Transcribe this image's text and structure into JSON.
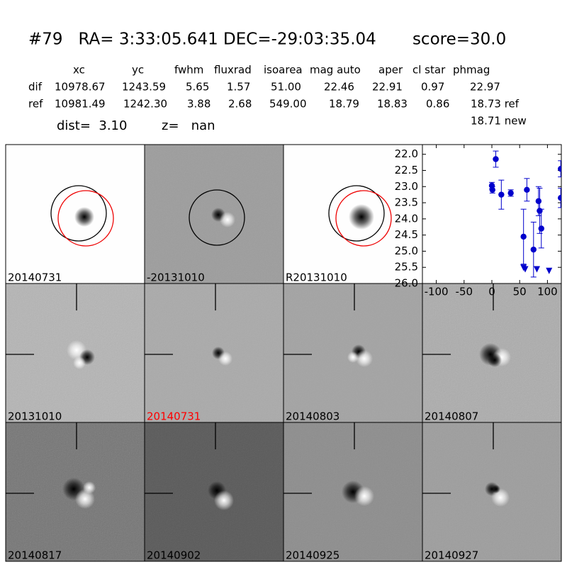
{
  "header": {
    "title": "#79   RA= 3:33:05.641 DEC=-29:03:35.04       score=30.0"
  },
  "table": {
    "columns": [
      "xc",
      "yc",
      "fwhm",
      "fluxrad",
      "isoarea",
      "mag auto",
      "aper",
      "cl star",
      "phmag"
    ],
    "rows": [
      [
        "dif",
        "10978.67",
        "1243.59",
        "5.65",
        "1.57",
        "51.00",
        "22.46",
        "22.91",
        "0.97",
        "22.97"
      ],
      [
        "ref",
        "10981.49",
        "1242.30",
        "3.88",
        "2.68",
        "549.00",
        "18.79",
        "18.83",
        "0.86",
        "18.73 ref"
      ]
    ],
    "extra": "18.71 new"
  },
  "summary": {
    "dist": "dist=  3.10",
    "z": "z=   nan"
  },
  "panels": [
    {
      "label": "20140731"
    },
    {
      "label": "-20131010"
    },
    {
      "label": "R20131010"
    },
    {
      "label": "20131010"
    },
    {
      "label": "20140731",
      "label_color": "#ff0000"
    },
    {
      "label": "20140803"
    },
    {
      "label": "20140807"
    },
    {
      "label": "20140817"
    },
    {
      "label": "20140902"
    },
    {
      "label": "20140925"
    },
    {
      "label": "20140927"
    }
  ],
  "chart_data": {
    "type": "scatter",
    "xlim": [
      -125,
      125
    ],
    "xticks": [
      -100,
      -50,
      0,
      50,
      100
    ],
    "ylim": [
      26,
      21.7
    ],
    "yticks": [
      {
        "value": 22,
        "label": "22.0"
      },
      22.5,
      {
        "value": 23,
        "label": "23.0"
      },
      23.5,
      {
        "value": 24,
        "label": "24.0"
      },
      24.5,
      {
        "value": 25,
        "label": "25.0"
      },
      25.5,
      {
        "value": 26,
        "label": "26.0"
      }
    ],
    "series": [
      {
        "color": "#0000cc",
        "marker": "circle",
        "x": [
          0,
          1,
          7,
          17,
          34,
          57,
          63,
          75,
          84,
          86,
          89,
          124,
          124
        ],
        "values": [
          22.97,
          23.1,
          22.15,
          23.25,
          23.2,
          24.55,
          23.1,
          24.95,
          23.45,
          23.75,
          24.3,
          22.45,
          23.35
        ],
        "errors": [
          0.1,
          0.1,
          0.25,
          0.45,
          0.1,
          0.85,
          0.35,
          0.85,
          0.45,
          0.7,
          0.6,
          0.25,
          0.3
        ]
      },
      {
        "color": "#0000cc",
        "marker": "triangle",
        "x": [
          57,
          60,
          81,
          103
        ],
        "values": [
          25.5,
          25.55,
          25.55,
          25.6
        ]
      }
    ]
  }
}
